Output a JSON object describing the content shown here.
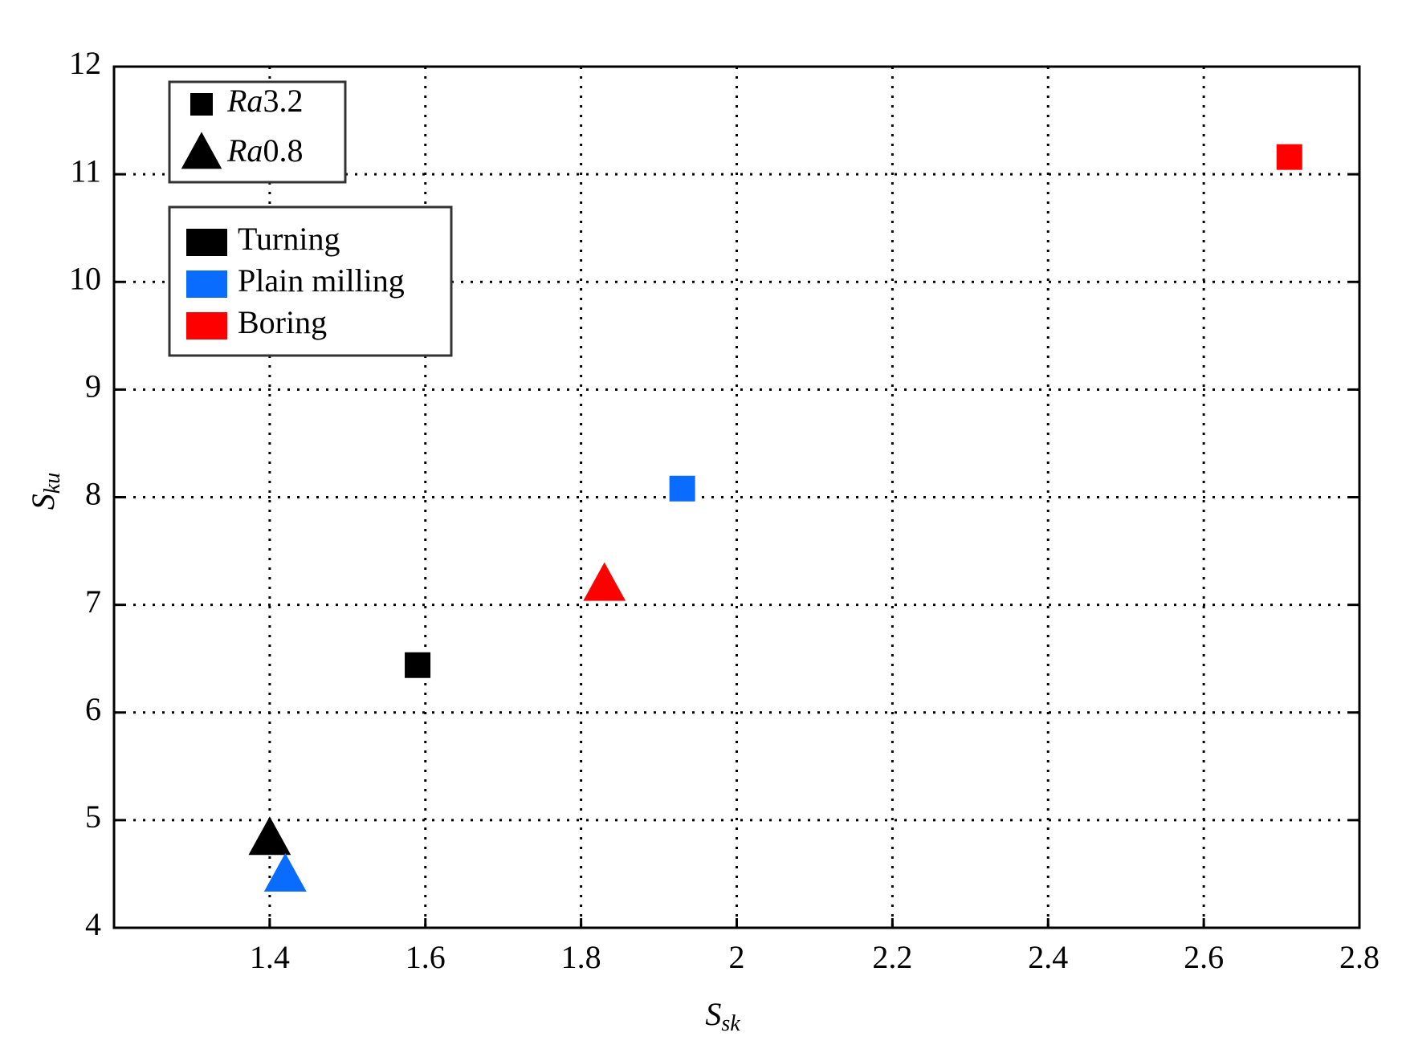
{
  "chart_data": {
    "type": "scatter",
    "x_label": "Ssk",
    "y_label": "Sku",
    "xlim": [
      1.2,
      2.8
    ],
    "ylim": [
      4,
      12
    ],
    "xticks": [
      1.4,
      1.6,
      1.8,
      2,
      2.2,
      2.4,
      2.6,
      2.8
    ],
    "yticks": [
      4,
      5,
      6,
      7,
      8,
      9,
      10,
      11,
      12
    ],
    "grid": true,
    "marker_groups": [
      {
        "name": "Ra3.2",
        "marker": "square"
      },
      {
        "name": "Ra0.8",
        "marker": "triangle"
      }
    ],
    "series": [
      {
        "name": "Turning",
        "color": "#000000",
        "x": [
          1.59,
          1.4
        ],
        "values": [
          6.44,
          4.82
        ]
      },
      {
        "name": "Plain milling",
        "color": "#0a6cff",
        "x": [
          1.93,
          1.42
        ],
        "values": [
          8.08,
          4.48
        ]
      },
      {
        "name": "Boring",
        "color": "#ff0000",
        "x": [
          2.71,
          1.83
        ],
        "values": [
          11.16,
          7.18
        ]
      }
    ]
  }
}
